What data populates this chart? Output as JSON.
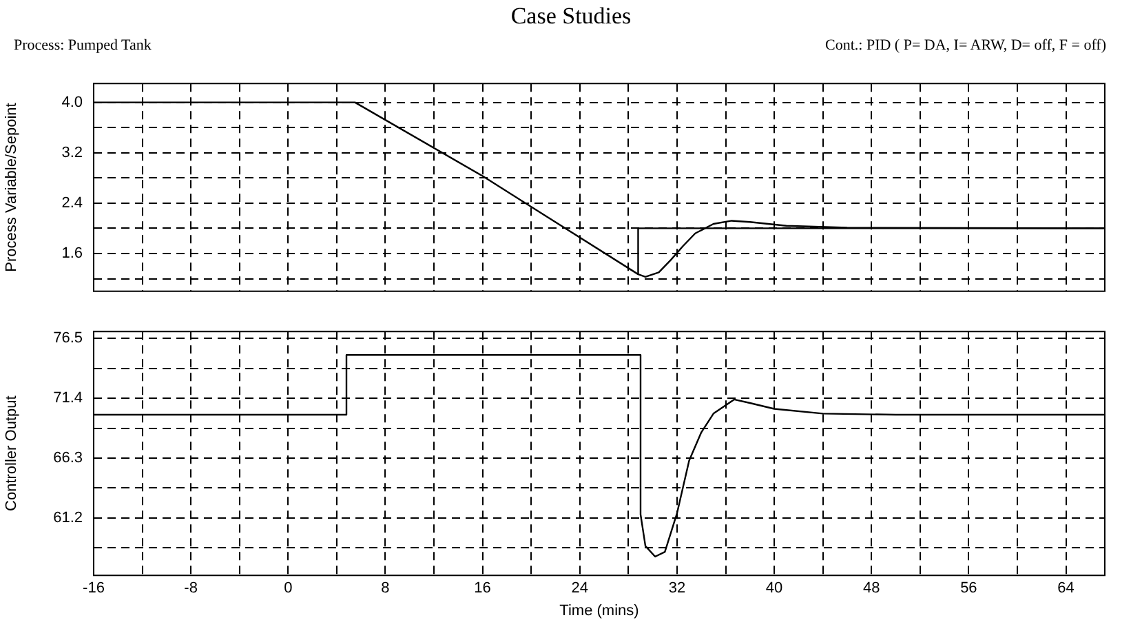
{
  "chart_data": [
    {
      "type": "line",
      "title": "Case Studies",
      "annotations": [
        "Process: Pumped Tank",
        "Cont.: PID ( P= DA, I= ARW, D= off, F = off)"
      ],
      "ylabel": "Process Variable/Sepoint",
      "marker": "none",
      "grid": true,
      "legend": false,
      "tick_labels": "y",
      "xlim": [
        -16,
        67.2
      ],
      "xticks": [
        -16,
        {
          "value": -12,
          "label": null
        },
        -8,
        {
          "value": -4,
          "label": null
        },
        0,
        {
          "value": 4,
          "label": null
        },
        8,
        {
          "value": 12,
          "label": null
        },
        16,
        {
          "value": 20,
          "label": null
        },
        24,
        {
          "value": 28,
          "label": null
        },
        32,
        {
          "value": 36,
          "label": null
        },
        40,
        {
          "value": 44,
          "label": null
        },
        48,
        {
          "value": 52,
          "label": null
        },
        56,
        {
          "value": 60,
          "label": null
        },
        64
      ],
      "ylim": [
        1.0,
        4.3
      ],
      "yticks": [
        {
          "value": 1.2,
          "label": null
        },
        {
          "value": 1.6,
          "label": "1.6"
        },
        {
          "value": 2.0,
          "label": null
        },
        {
          "value": 2.4,
          "label": "2.4"
        },
        {
          "value": 2.8,
          "label": null
        },
        {
          "value": 3.2,
          "label": "3.2"
        },
        {
          "value": 3.6,
          "label": null
        },
        {
          "value": 4.0,
          "label": "4.0"
        }
      ],
      "series": [
        {
          "color": "#000000",
          "x": [
            -16,
            5.5,
            16,
            28.8,
            29.4,
            30.5,
            31.5,
            32.5,
            33.5,
            35,
            36.5,
            38,
            41,
            46,
            67.2
          ],
          "values": [
            4.0,
            4.0,
            2.83,
            1.27,
            1.23,
            1.3,
            1.5,
            1.72,
            1.92,
            2.07,
            2.12,
            2.1,
            2.04,
            2.01,
            2.0
          ]
        },
        {
          "color": "#000000",
          "x": [
            28.8,
            28.8,
            67.2
          ],
          "values": [
            1.27,
            2.0,
            2.0
          ]
        }
      ]
    },
    {
      "type": "line",
      "xlabel": "Time (mins)",
      "ylabel": "Controller Output",
      "marker": "none",
      "grid": true,
      "legend": false,
      "xlim": [
        -16,
        67.2
      ],
      "xticks": [
        -16,
        {
          "value": -12,
          "label": null
        },
        -8,
        {
          "value": -4,
          "label": null
        },
        0,
        {
          "value": 4,
          "label": null
        },
        8,
        {
          "value": 12,
          "label": null
        },
        16,
        {
          "value": 20,
          "label": null
        },
        24,
        {
          "value": 28,
          "label": null
        },
        32,
        {
          "value": 36,
          "label": null
        },
        40,
        {
          "value": 44,
          "label": null
        },
        48,
        {
          "value": 52,
          "label": null
        },
        56,
        {
          "value": 60,
          "label": null
        },
        64
      ],
      "ylim": [
        56.3,
        77.1
      ],
      "yticks": [
        {
          "value": 58.65,
          "label": null
        },
        61.2,
        {
          "value": 63.75,
          "label": null
        },
        66.3,
        {
          "value": 68.85,
          "label": null
        },
        71.4,
        {
          "value": 73.95,
          "label": null
        },
        76.5
      ],
      "series": [
        {
          "color": "#000000",
          "x": [
            -16,
            4.8,
            4.8,
            29.0,
            29.0,
            29.4,
            30.2,
            31,
            32,
            33,
            34,
            35,
            36.7,
            38,
            40,
            44,
            50,
            67.2
          ],
          "values": [
            70.0,
            70.0,
            75.1,
            75.1,
            61.5,
            58.8,
            57.9,
            58.3,
            61.6,
            66.1,
            68.5,
            70.1,
            71.3,
            71.0,
            70.5,
            70.1,
            70.0,
            70.0
          ]
        }
      ]
    }
  ]
}
